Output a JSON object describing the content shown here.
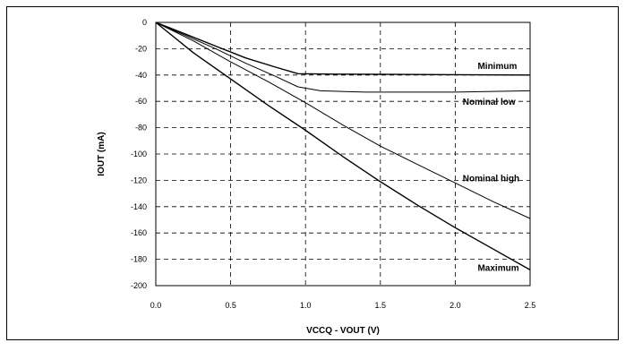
{
  "chart_data": {
    "type": "line",
    "xlabel": "VCCQ - VOUT (V)",
    "ylabel": "IOUT (mA)",
    "xlim": [
      0,
      2.5
    ],
    "ylim": [
      -200,
      0
    ],
    "x_ticks": [
      0.0,
      0.5,
      1.0,
      1.5,
      2.0,
      2.5
    ],
    "x_tick_labels": [
      "0.0",
      "0.5",
      "1.0",
      "1.5",
      "2.0",
      "2.5"
    ],
    "y_ticks": [
      0,
      -20,
      -40,
      -60,
      -80,
      -100,
      -120,
      -140,
      -160,
      -180,
      -200
    ],
    "y_tick_labels": [
      "0",
      "-20",
      "-40",
      "-60",
      "-80",
      "-100",
      "-120",
      "-140",
      "-160",
      "-180",
      "-200"
    ],
    "grid": true,
    "series": [
      {
        "name": "Minimum",
        "x": [
          0,
          0.2,
          0.4,
          0.6,
          0.8,
          0.95,
          1.2,
          1.6,
          2.0,
          2.5
        ],
        "y": [
          0,
          -9,
          -18,
          -27,
          -34,
          -39,
          -39.3,
          -39.5,
          -39.7,
          -40
        ]
      },
      {
        "name": "Nominal low",
        "x": [
          0,
          0.2,
          0.4,
          0.6,
          0.8,
          0.95,
          1.1,
          1.4,
          2.0,
          2.5
        ],
        "y": [
          0,
          -10,
          -20,
          -31,
          -41,
          -49,
          -52,
          -53,
          -53,
          -52
        ]
      },
      {
        "name": "Nominal high",
        "x": [
          0,
          0.25,
          0.5,
          0.75,
          1.0,
          1.25,
          1.5,
          1.75,
          2.0,
          2.25,
          2.5
        ],
        "y": [
          0,
          -14,
          -30,
          -45,
          -61,
          -78,
          -94,
          -108,
          -122,
          -136,
          -149
        ]
      },
      {
        "name": "Maximum",
        "x": [
          0,
          0.25,
          0.5,
          0.75,
          1.0,
          1.25,
          1.5,
          1.75,
          2.0,
          2.25,
          2.5
        ],
        "y": [
          0,
          -23,
          -43,
          -63,
          -82,
          -102,
          -121,
          -139,
          -156,
          -172,
          -188
        ]
      }
    ],
    "curve_labels": [
      {
        "text": "Minimum",
        "x": 2.15,
        "y": -32.5
      },
      {
        "text": "Nominal low",
        "x": 2.05,
        "y": -60
      },
      {
        "text": "Nominal high",
        "x": 2.05,
        "y": -118
      },
      {
        "text": "Maximum",
        "x": 2.15,
        "y": -186
      }
    ],
    "line_color": "#000000",
    "grid_color": "#000000"
  }
}
